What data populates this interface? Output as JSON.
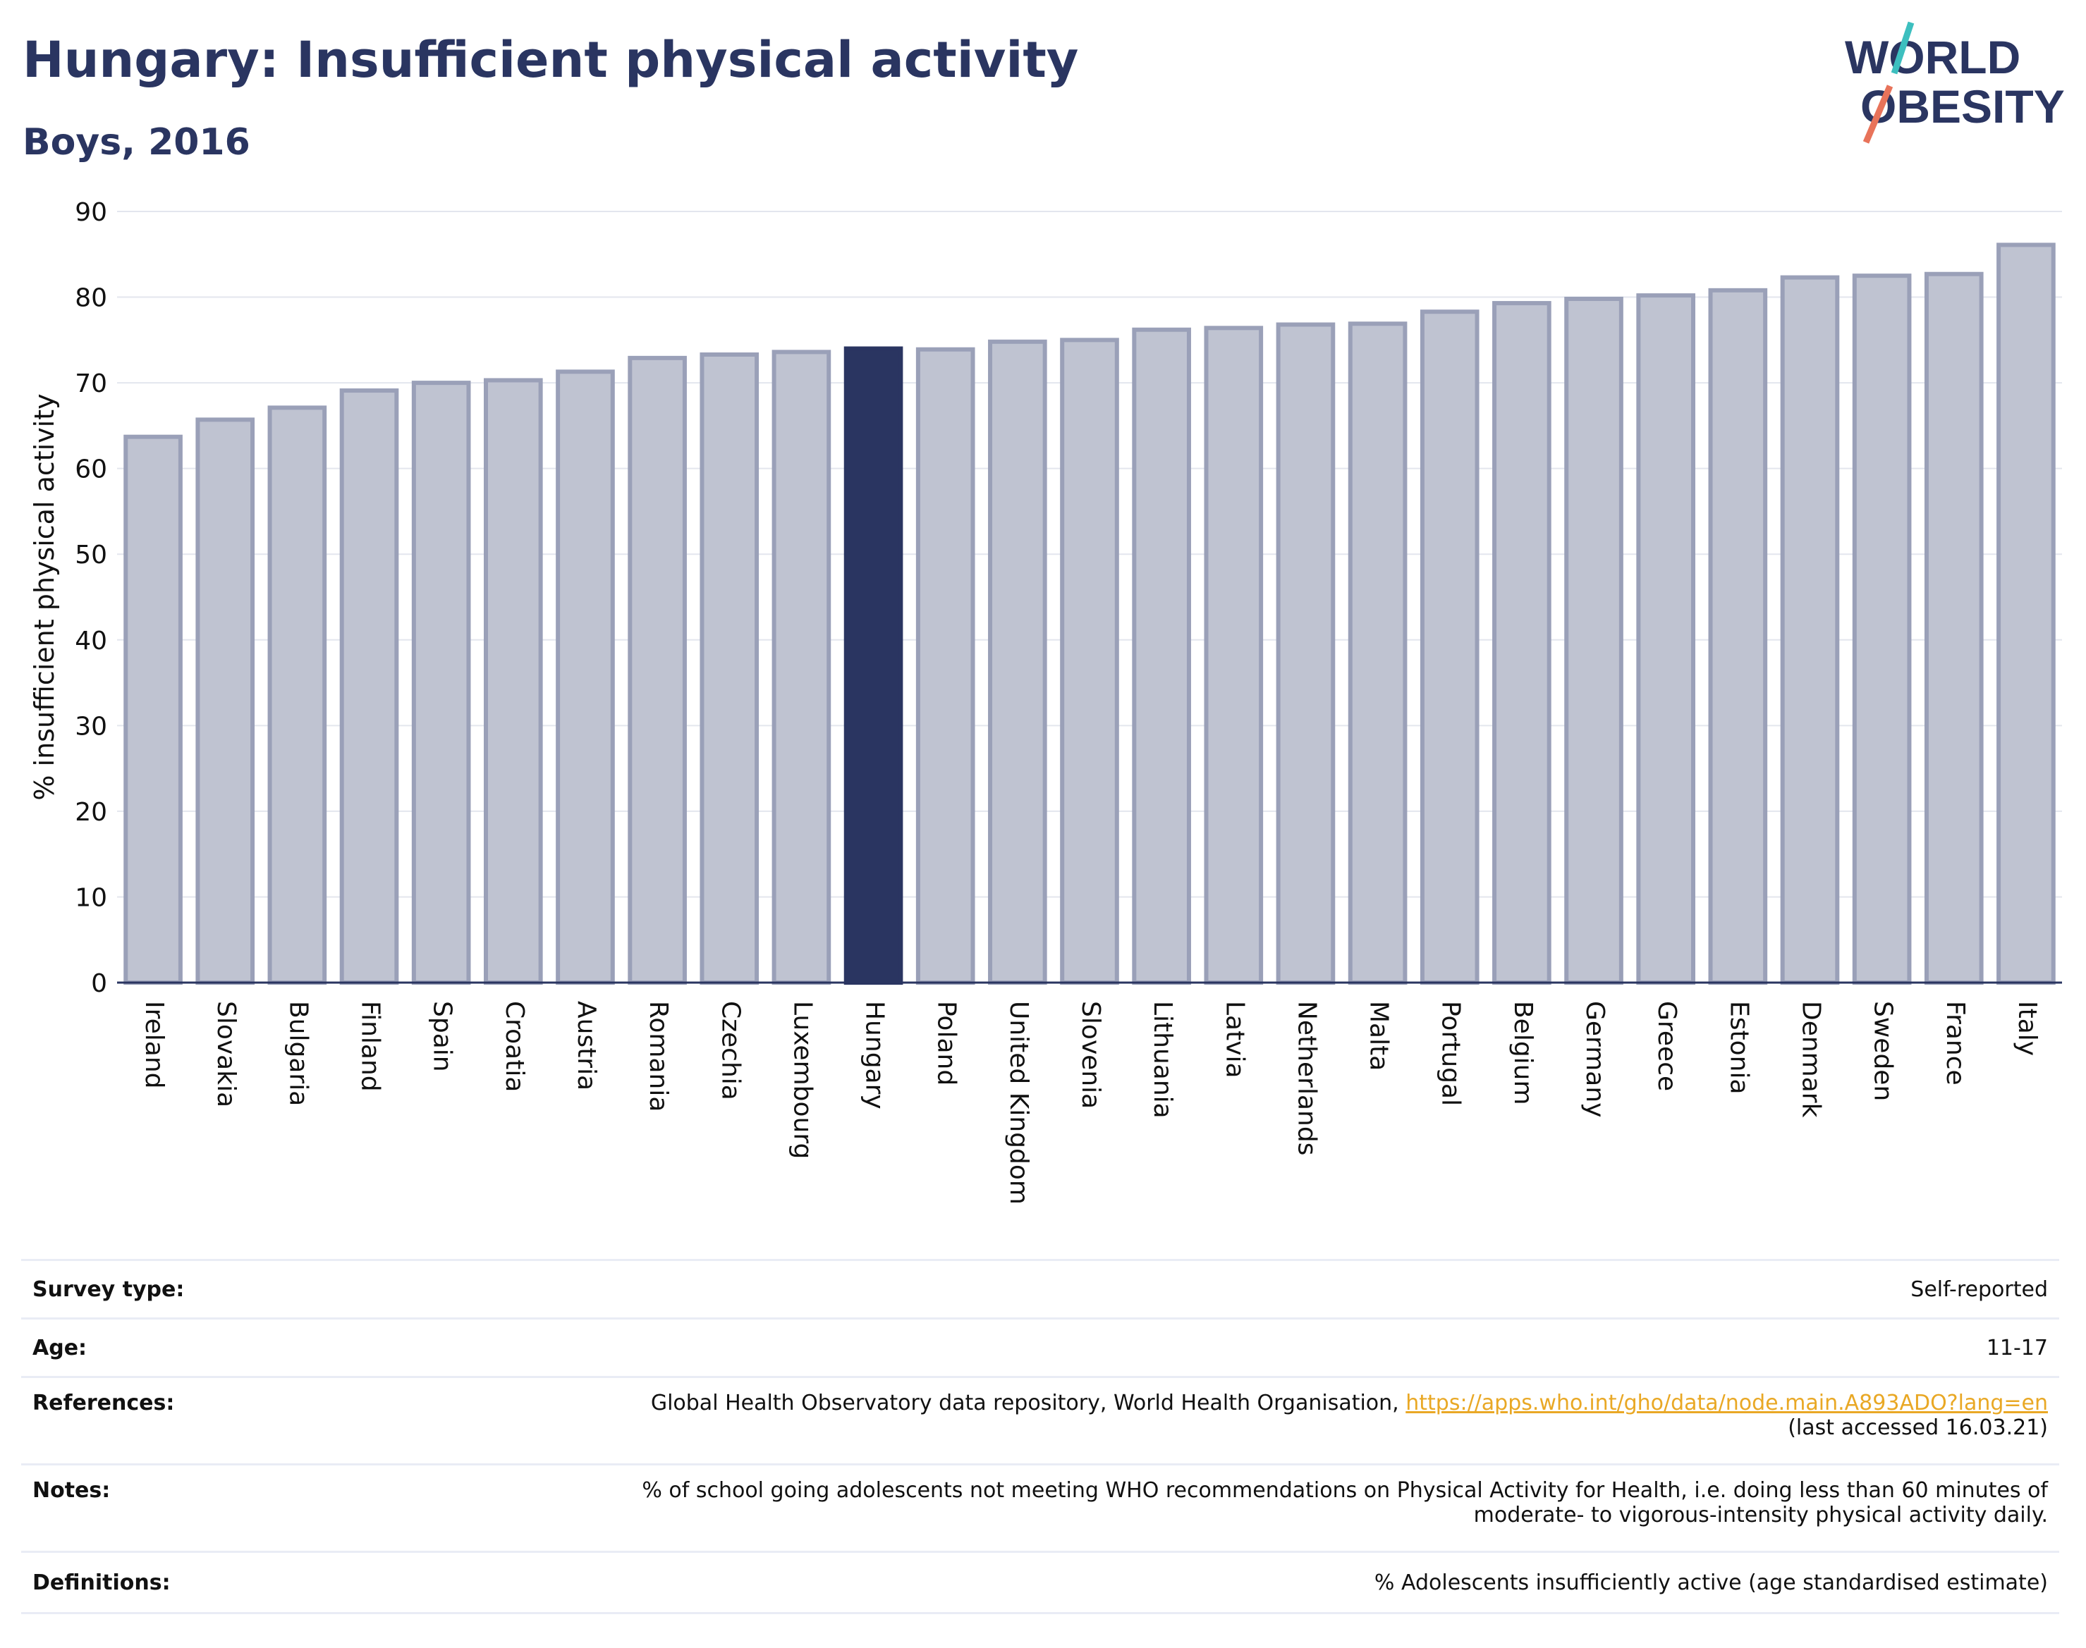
{
  "header": {
    "title": "Hungary: Insufficient physical activity",
    "subtitle": "Boys, 2016",
    "logo_line1": "WORLD",
    "logo_line2": "OBESITY"
  },
  "colors": {
    "bar_default": "#bfc3d1",
    "bar_default_stroke": "#9aa0b8",
    "bar_highlight": "#2a3561",
    "title": "#2a3561",
    "link": "#e9a825",
    "logo_teal": "#3dbfbf",
    "logo_coral": "#e8735a"
  },
  "chart_data": {
    "type": "bar",
    "title": "",
    "xlabel": "",
    "ylabel": "% insufficient physical activity",
    "ylim": [
      0,
      90
    ],
    "yticks": [
      0,
      10,
      20,
      30,
      40,
      50,
      60,
      70,
      80,
      90
    ],
    "grid": true,
    "highlight": "Hungary",
    "categories": [
      "Ireland",
      "Slovakia",
      "Bulgaria",
      "Finland",
      "Spain",
      "Croatia",
      "Austria",
      "Romania",
      "Czechia",
      "Luxembourg",
      "Hungary",
      "Poland",
      "United Kingdom",
      "Slovenia",
      "Lithuania",
      "Latvia",
      "Netherlands",
      "Malta",
      "Portugal",
      "Belgium",
      "Germany",
      "Greece",
      "Estonia",
      "Denmark",
      "Sweden",
      "France",
      "Italy"
    ],
    "values": [
      63.7,
      65.7,
      67.1,
      69.1,
      70.0,
      70.3,
      71.3,
      72.9,
      73.3,
      73.6,
      74.0,
      73.9,
      74.8,
      75.0,
      76.2,
      76.4,
      76.8,
      76.9,
      78.3,
      79.3,
      79.8,
      80.2,
      80.8,
      82.3,
      82.5,
      82.7,
      86.1
    ]
  },
  "info": {
    "survey_type_label": "Survey type:",
    "survey_type_value": "Self-reported",
    "age_label": "Age:",
    "age_value": "11-17",
    "references_label": "References:",
    "references_text": "Global Health Observatory data repository, World Health Organisation,",
    "references_link": "https://apps.who.int/gho/data/node.main.A893ADO?lang=en",
    "references_accessed": "(last accessed 16.03.21)",
    "notes_label": "Notes:",
    "notes_line1": "% of school going adolescents not meeting WHO recommendations on Physical Activity for Health, i.e. doing less than 60 minutes of",
    "notes_line2": "moderate- to vigorous-intensity physical activity daily.",
    "definitions_label": "Definitions:",
    "definitions_value": "% Adolescents insufficiently active (age standardised estimate)"
  }
}
